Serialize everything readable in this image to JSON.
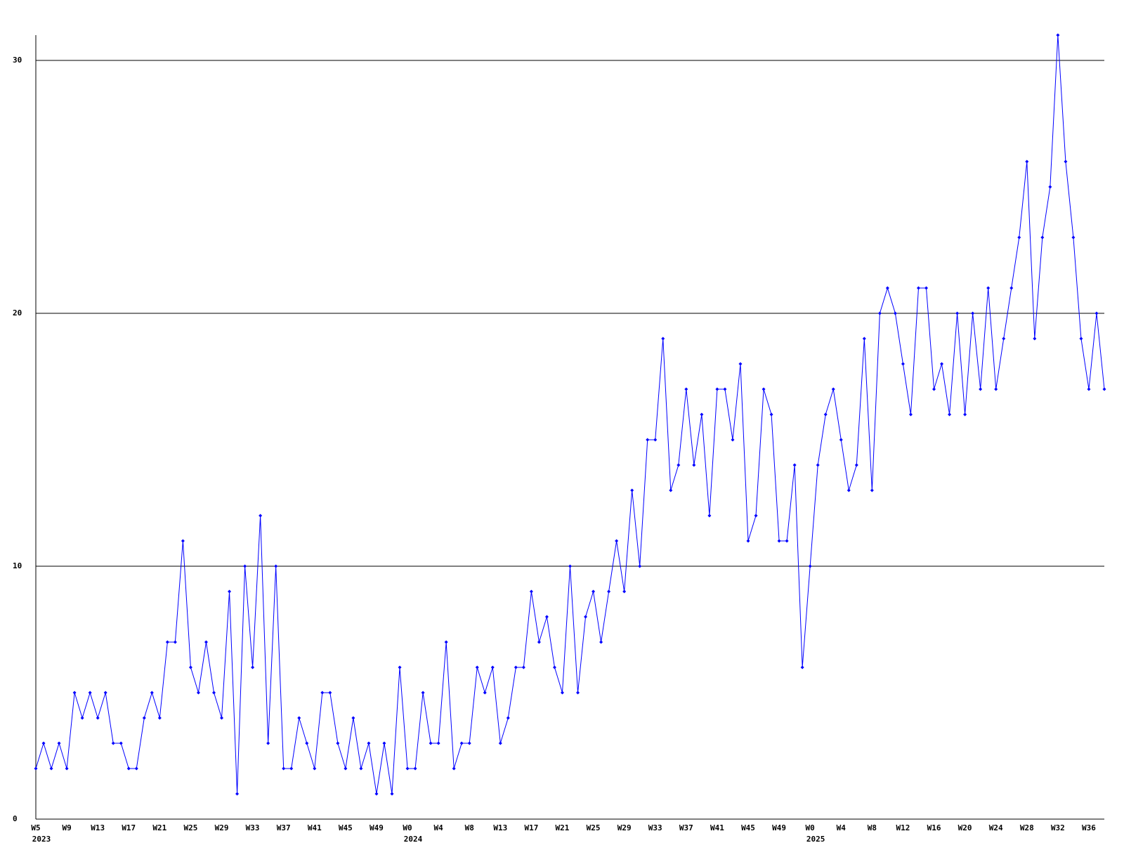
{
  "chart_data": {
    "type": "line",
    "categories": [
      "W5",
      null,
      null,
      null,
      "W9",
      null,
      null,
      null,
      "W13",
      null,
      null,
      null,
      "W17",
      null,
      null,
      null,
      "W21",
      null,
      null,
      null,
      "W25",
      null,
      null,
      null,
      "W29",
      null,
      null,
      null,
      "W33",
      null,
      null,
      null,
      "W37",
      null,
      null,
      null,
      "W41",
      null,
      null,
      null,
      "W45",
      null,
      null,
      null,
      "W49",
      null,
      null,
      null,
      "W0",
      null,
      null,
      null,
      "W4",
      null,
      null,
      null,
      "W8",
      null,
      null,
      null,
      "W13",
      null,
      null,
      null,
      "W17",
      null,
      null,
      null,
      "W21",
      null,
      null,
      null,
      "W25",
      null,
      null,
      null,
      "W29",
      null,
      null,
      null,
      "W33",
      null,
      null,
      null,
      "W37",
      null,
      null,
      null,
      "W41",
      null,
      null,
      null,
      "W45",
      null,
      null,
      null,
      "W49",
      null,
      null,
      null,
      "W0",
      null,
      null,
      null,
      "W4",
      null,
      null,
      null,
      "W8",
      null,
      null,
      null,
      "W12",
      null,
      null,
      null,
      "W16",
      null,
      null,
      null,
      "W20",
      null,
      null,
      null,
      "W24",
      null,
      null,
      null,
      "W28",
      null,
      null,
      null,
      "W32",
      null,
      null,
      null,
      "W36",
      null,
      null
    ],
    "years": [
      "2023",
      null,
      null,
      null,
      null,
      null,
      null,
      null,
      null,
      null,
      null,
      null,
      null,
      null,
      null,
      null,
      null,
      null,
      null,
      null,
      null,
      null,
      null,
      null,
      null,
      null,
      null,
      null,
      null,
      null,
      null,
      null,
      null,
      null,
      null,
      null,
      null,
      null,
      null,
      null,
      null,
      null,
      null,
      null,
      null,
      null,
      null,
      null,
      "2024",
      null,
      null,
      null,
      null,
      null,
      null,
      null,
      null,
      null,
      null,
      null,
      null,
      null,
      null,
      null,
      null,
      null,
      null,
      null,
      null,
      null,
      null,
      null,
      null,
      null,
      null,
      null,
      null,
      null,
      null,
      null,
      null,
      null,
      null,
      null,
      null,
      null,
      null,
      null,
      null,
      null,
      null,
      null,
      null,
      null,
      null,
      null,
      null,
      null,
      null,
      null,
      "2025",
      null,
      null,
      null,
      null,
      null,
      null,
      null,
      null,
      null,
      null,
      null,
      null,
      null,
      null,
      null,
      null,
      null,
      null,
      null,
      null,
      null,
      null,
      null,
      null,
      null,
      null,
      null,
      null,
      null,
      null,
      null,
      null,
      null,
      null,
      null,
      null,
      null,
      null
    ],
    "series": [
      {
        "color": "#0000ff",
        "values": [
          2,
          3,
          2,
          3,
          2,
          5,
          4,
          5,
          4,
          5,
          3,
          3,
          2,
          2,
          4,
          5,
          4,
          7,
          7,
          11,
          6,
          5,
          7,
          5,
          4,
          9,
          1,
          10,
          6,
          12,
          3,
          10,
          2,
          2,
          4,
          3,
          2,
          5,
          5,
          3,
          2,
          4,
          2,
          3,
          1,
          3,
          1,
          6,
          2,
          2,
          5,
          3,
          3,
          7,
          2,
          3,
          3,
          6,
          5,
          6,
          3,
          4,
          6,
          6,
          9,
          7,
          8,
          6,
          5,
          10,
          5,
          8,
          9,
          7,
          9,
          11,
          9,
          13,
          10,
          15,
          15,
          19,
          13,
          14,
          17,
          14,
          16,
          12,
          17,
          17,
          15,
          18,
          11,
          12,
          17,
          16,
          11,
          11,
          14,
          6,
          10,
          14,
          16,
          17,
          15,
          13,
          14,
          19,
          13,
          20,
          21,
          20,
          18,
          16,
          21,
          21,
          17,
          18,
          16,
          20,
          16,
          20,
          17,
          21,
          17,
          19,
          21,
          23,
          26,
          19,
          23,
          25,
          31,
          26,
          23,
          19,
          17,
          20,
          17
        ]
      }
    ],
    "ylim": [
      0,
      31
    ],
    "yticks": [
      0,
      10,
      20,
      30
    ],
    "grid": true
  }
}
